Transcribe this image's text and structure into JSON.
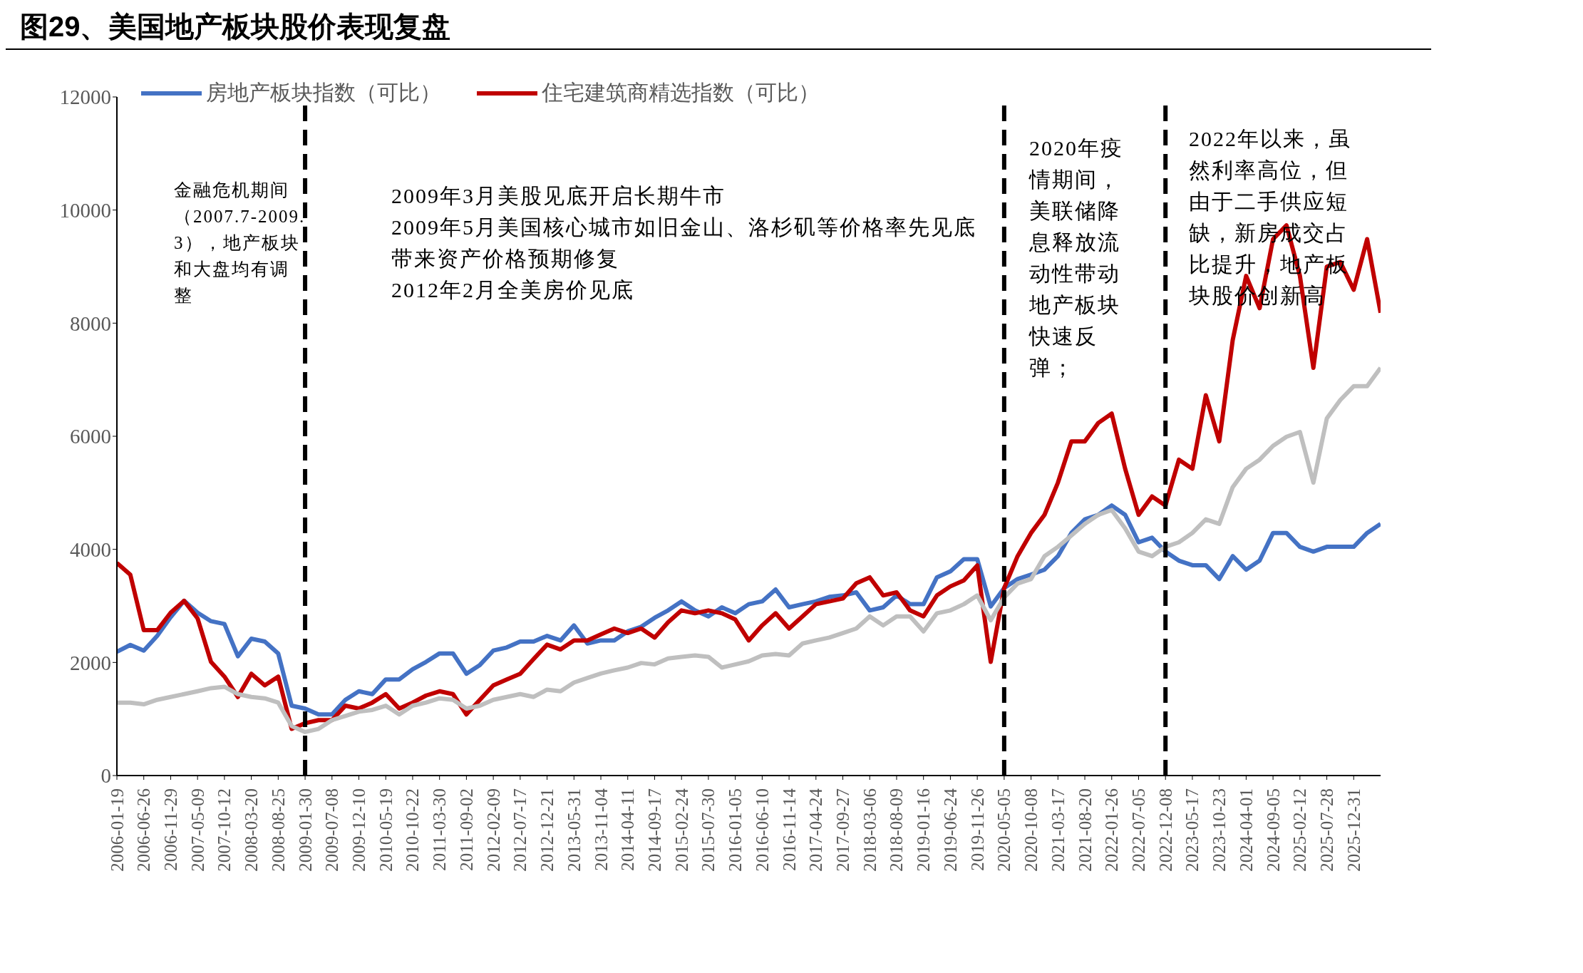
{
  "chart_data": {
    "type": "line",
    "title": "图29、美国地产板块股价表现复盘",
    "categories": [
      "2006-01-19",
      null,
      "2006-06-26",
      null,
      "2006-11-29",
      null,
      "2007-05-09",
      null,
      "2007-10-12",
      null,
      "2008-03-20",
      null,
      "2008-08-25",
      null,
      "2009-01-30",
      null,
      "2009-07-08",
      null,
      "2009-12-10",
      null,
      "2010-05-19",
      null,
      "2010-10-22",
      null,
      "2011-03-30",
      null,
      "2011-09-02",
      null,
      "2012-02-09",
      null,
      "2012-07-17",
      null,
      "2012-12-21",
      null,
      "2013-05-31",
      null,
      "2013-11-04",
      null,
      "2014-04-11",
      null,
      "2014-09-17",
      null,
      "2015-02-24",
      null,
      "2015-07-30",
      null,
      "2016-01-05",
      null,
      "2016-06-10",
      null,
      "2016-11-14",
      null,
      "2017-04-24",
      null,
      "2017-09-27",
      null,
      "2018-03-06",
      null,
      "2018-08-09",
      null,
      "2019-01-16",
      null,
      "2019-06-24",
      null,
      "2019-11-26",
      null,
      "2020-05-05",
      null,
      "2020-10-08",
      null,
      "2021-03-17",
      null,
      "2021-08-20",
      null,
      "2022-01-26",
      null,
      "2022-07-05",
      null,
      "2022-12-08",
      null,
      "2023-05-17",
      null,
      "2023-10-23",
      null,
      "2024-04-01",
      null,
      "2024-09-05",
      null,
      "2025-02-12",
      null,
      "2025-07-28",
      null,
      "2025-12-31",
      null,
      null
    ],
    "series": [
      {
        "name": "房地产板块指数（可比）",
        "color": "#4472c4",
        "values": [
          2190,
          2310,
          2210,
          2470,
          2800,
          3090,
          2880,
          2730,
          2680,
          2110,
          2420,
          2370,
          2160,
          1235,
          1185,
          1080,
          1080,
          1340,
          1490,
          1440,
          1700,
          1700,
          1880,
          2010,
          2160,
          2160,
          1800,
          1955,
          2210,
          2265,
          2370,
          2370,
          2470,
          2390,
          2655,
          2335,
          2390,
          2390,
          2550,
          2630,
          2790,
          2920,
          3080,
          2920,
          2815,
          2975,
          2870,
          3030,
          3080,
          3290,
          2975,
          3030,
          3080,
          3160,
          3185,
          3240,
          2920,
          2975,
          3185,
          3030,
          3030,
          3505,
          3610,
          3825,
          3825,
          2990,
          3315,
          3475,
          3555,
          3640,
          3880,
          4290,
          4530,
          4610,
          4775,
          4610,
          4125,
          4205,
          3960,
          3800,
          3720,
          3720,
          3475,
          3880,
          3640,
          3800,
          4290,
          4290,
          4045,
          3960,
          4045,
          4045,
          4045,
          4290,
          4450
        ]
      },
      {
        "name": "住宅建筑商精选指数（可比）",
        "color": "#c00000",
        "values": [
          3760,
          3550,
          2570,
          2570,
          2880,
          3090,
          2780,
          2010,
          1750,
          1390,
          1800,
          1595,
          1750,
          825,
          925,
          980,
          980,
          1235,
          1185,
          1290,
          1440,
          1185,
          1290,
          1415,
          1490,
          1440,
          1080,
          1340,
          1595,
          1700,
          1800,
          2060,
          2315,
          2230,
          2390,
          2390,
          2495,
          2600,
          2520,
          2600,
          2440,
          2710,
          2920,
          2870,
          2920,
          2870,
          2760,
          2390,
          2655,
          2870,
          2600,
          2815,
          3030,
          3080,
          3130,
          3400,
          3505,
          3185,
          3240,
          2920,
          2815,
          3185,
          3345,
          3450,
          3715,
          2010,
          3315,
          3880,
          4290,
          4610,
          5180,
          5910,
          5910,
          6235,
          6400,
          5425,
          4610,
          4935,
          4775,
          5585,
          5425,
          6725,
          5910,
          7700,
          8835,
          8265,
          9485,
          9730,
          8835,
          7210,
          9000,
          9080,
          8590,
          9485,
          8185
        ]
      },
      {
        "color": "#bfbfbf",
        "values": [
          1290,
          1290,
          1260,
          1340,
          1390,
          1440,
          1490,
          1545,
          1570,
          1440,
          1390,
          1365,
          1290,
          875,
          770,
          825,
          980,
          1055,
          1130,
          1160,
          1235,
          1080,
          1235,
          1290,
          1365,
          1340,
          1185,
          1235,
          1340,
          1390,
          1440,
          1390,
          1520,
          1490,
          1645,
          1725,
          1805,
          1860,
          1910,
          1990,
          1965,
          2070,
          2100,
          2125,
          2100,
          1910,
          1965,
          2020,
          2125,
          2150,
          2125,
          2335,
          2390,
          2440,
          2520,
          2600,
          2815,
          2655,
          2815,
          2815,
          2550,
          2870,
          2920,
          3030,
          3185,
          2745,
          3150,
          3395,
          3475,
          3880,
          4045,
          4245,
          4450,
          4610,
          4695,
          4370,
          3960,
          3880,
          4045,
          4125,
          4290,
          4530,
          4450,
          5100,
          5425,
          5585,
          5830,
          5990,
          6075,
          5180,
          6315,
          6640,
          6885,
          6885,
          7210
        ]
      }
    ],
    "ylim": [
      0,
      12000
    ],
    "yticks": [
      0,
      2000,
      4000,
      6000,
      8000,
      10000,
      12000
    ],
    "legend": "top",
    "marker": "none",
    "line_style": "solid",
    "ref_lines": [
      {
        "axis": "x",
        "value": "2009-01-30",
        "color": "#000000",
        "line_style": "dashed"
      },
      {
        "axis": "x",
        "value": "2020-05-05",
        "color": "#000000",
        "line_style": "dashed"
      },
      {
        "axis": "x",
        "value": "2022-12-08",
        "color": "#000000",
        "line_style": "dashed"
      }
    ],
    "annotations": [
      "金融危机期间（2007.7-2009.3），地产板块和大盘均有调整",
      "2009年3月美股见底开启长期牛市",
      "2009年5月美国核心城市如旧金山、洛杉矶等价格率先见底带来资产价格预期修复",
      "2012年2月全美房价见底",
      "2020年疫情期间，美联储降息释放流动性带动地产板块快速反弹；",
      "2022年以来，虽然利率高位，但由于二手供应短缺，新房成交占比提升，地产板块股价创新高"
    ]
  }
}
